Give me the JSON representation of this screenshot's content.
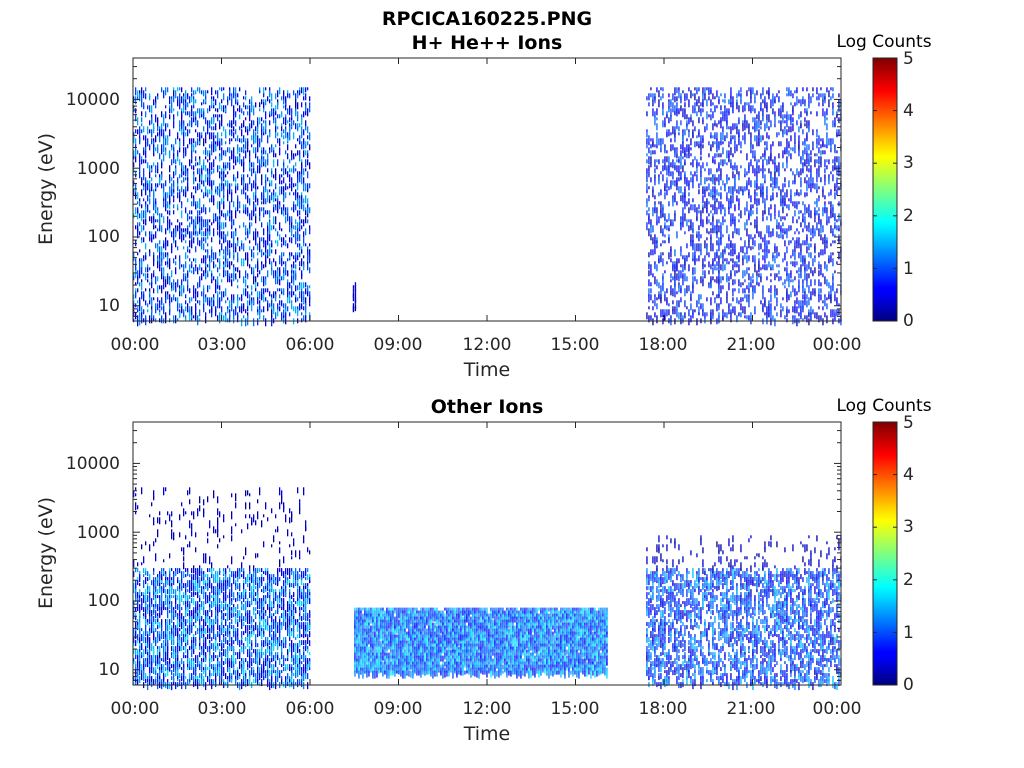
{
  "figure": {
    "filename": "RPCICA160225.PNG"
  },
  "colorbar": {
    "label": "Log Counts",
    "ticks": [
      "0",
      "1",
      "2",
      "3",
      "4",
      "5"
    ],
    "range": [
      0,
      5
    ],
    "colormap": "jet"
  },
  "chart_data": [
    {
      "type": "heatmap",
      "title": "H+ He++ Ions",
      "xlabel": "Time",
      "ylabel": "Energy (eV)",
      "xticks": [
        "00:00",
        "03:00",
        "06:00",
        "09:00",
        "12:00",
        "15:00",
        "18:00",
        "21:00",
        "00:00"
      ],
      "yticks": [
        "10",
        "100",
        "1000",
        "10000"
      ],
      "xlim_hours": [
        0,
        24
      ],
      "ylim_eV": [
        6,
        40000
      ],
      "yscale": "log",
      "colorbar": "Log Counts",
      "features": [
        {
          "t_start_h": 0.0,
          "t_end_h": 6.0,
          "emin_eV": 6,
          "emax_eV": 15000,
          "density": 0.32,
          "level_range": [
            0.2,
            1.6
          ]
        },
        {
          "t_start_h": 7.45,
          "t_end_h": 7.55,
          "emin_eV": 9,
          "emax_eV": 22,
          "density": 0.9,
          "level_range": [
            0.2,
            0.6
          ]
        },
        {
          "t_start_h": 17.4,
          "t_end_h": 24.0,
          "emin_eV": 6,
          "emax_eV": 15000,
          "density": 0.28,
          "level_range": [
            0.2,
            1.2
          ]
        }
      ]
    },
    {
      "type": "heatmap",
      "title": "Other Ions",
      "xlabel": "Time",
      "ylabel": "Energy (eV)",
      "xticks": [
        "00:00",
        "03:00",
        "06:00",
        "09:00",
        "12:00",
        "15:00",
        "18:00",
        "21:00",
        "00:00"
      ],
      "yticks": [
        "10",
        "100",
        "1000",
        "10000"
      ],
      "xlim_hours": [
        0,
        24
      ],
      "ylim_eV": [
        6,
        40000
      ],
      "yscale": "log",
      "colorbar": "Log Counts",
      "features": [
        {
          "t_start_h": 0.0,
          "t_end_h": 6.0,
          "emin_eV": 6,
          "emax_eV": 300,
          "density": 0.55,
          "level_range": [
            0.3,
            1.8
          ]
        },
        {
          "t_start_h": 0.0,
          "t_end_h": 6.0,
          "emin_eV": 300,
          "emax_eV": 4500,
          "density": 0.06,
          "level_range": [
            0.1,
            0.5
          ]
        },
        {
          "t_start_h": 7.5,
          "t_end_h": 16.1,
          "emin_eV": 9,
          "emax_eV": 80,
          "density": 0.95,
          "level_range": [
            0.6,
            1.8
          ]
        },
        {
          "t_start_h": 17.4,
          "t_end_h": 24.0,
          "emin_eV": 6,
          "emax_eV": 300,
          "density": 0.45,
          "level_range": [
            0.3,
            1.6
          ]
        },
        {
          "t_start_h": 17.4,
          "t_end_h": 24.0,
          "emin_eV": 300,
          "emax_eV": 900,
          "density": 0.08,
          "level_range": [
            0.1,
            0.5
          ]
        }
      ]
    }
  ]
}
